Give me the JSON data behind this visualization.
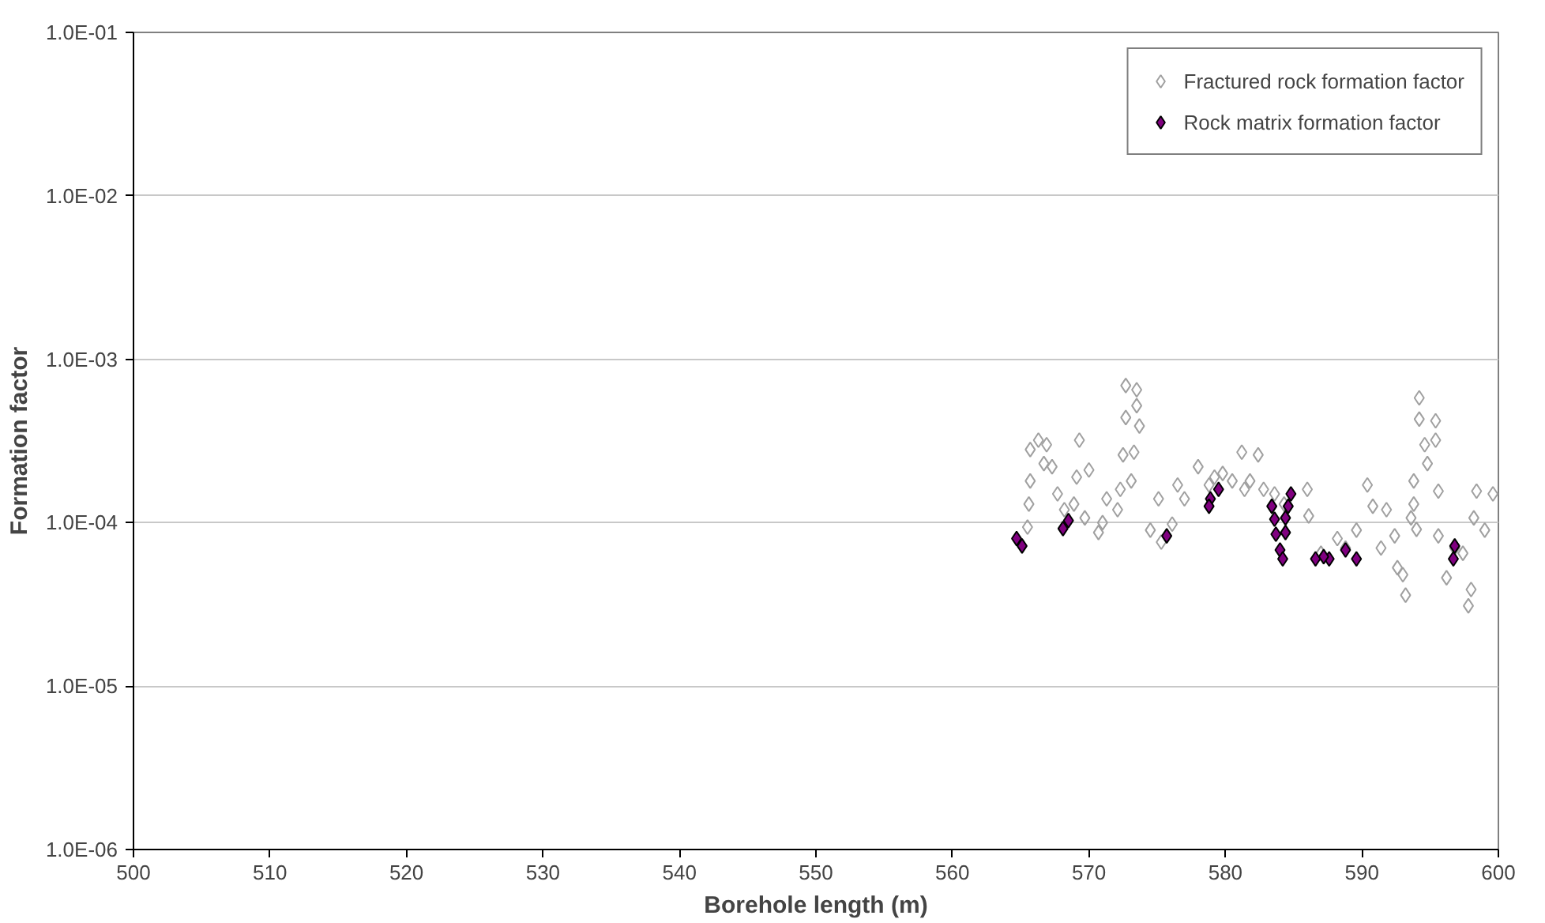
{
  "chart_data": {
    "type": "scatter",
    "xlabel": "Borehole length (m)",
    "ylabel": "Formation factor",
    "xlim": [
      500,
      600
    ],
    "xticks": [
      500,
      510,
      520,
      530,
      540,
      550,
      560,
      570,
      580,
      590,
      600
    ],
    "ylim": [
      1e-06,
      0.1
    ],
    "yticks": [
      {
        "value": 1e-06,
        "label": "1.0E-06"
      },
      {
        "value": 1e-05,
        "label": "1.0E-05"
      },
      {
        "value": 0.0001,
        "label": "1.0E-04"
      },
      {
        "value": 0.001,
        "label": "1.0E-03"
      },
      {
        "value": 0.01,
        "label": "1.0E-02"
      },
      {
        "value": 0.1,
        "label": "1.0E-01"
      }
    ],
    "log": "y",
    "grid": "y",
    "legend": "top right",
    "marker": "diamond",
    "series": [
      {
        "name": "Fractured rock formation factor",
        "color": "#a0a0a0",
        "x": [
          565.5,
          565.6,
          565.7,
          565.7,
          566.3,
          566.9,
          566.7,
          567.3,
          567.7,
          569.1,
          569.3,
          570.0,
          568.9,
          569.7,
          570.7,
          571.3,
          572.1,
          572.7,
          573.5,
          573.5,
          572.7,
          573.7,
          572.5,
          573.3,
          573.1,
          572.3,
          575.1,
          575.3,
          576.1,
          577.0,
          578.0,
          579.8,
          581.2,
          581.4,
          582.4,
          581.8,
          582.8,
          586.0,
          586.1,
          588.2,
          590.4,
          590.8,
          591.8,
          591.4,
          592.4,
          592.6,
          593.2,
          593.0,
          594.2,
          594.2,
          595.4,
          594.6,
          595.4,
          594.8,
          593.8,
          595.6,
          593.8,
          593.6,
          594.0,
          595.6,
          596.2,
          597.8,
          598.0,
          598.4,
          598.2,
          597.4,
          599.0,
          599.6,
          578.8,
          579.2,
          580.5,
          583.6,
          584.3,
          587.0,
          588.8,
          589.6,
          596.8,
          574.5,
          576.5,
          568.2,
          571.0
        ],
        "values": [
          9.4e-05,
          0.00013,
          0.00018,
          0.00028,
          0.00032,
          0.0003,
          0.00023,
          0.00022,
          0.00015,
          0.00019,
          0.00032,
          0.00021,
          0.00013,
          0.000107,
          8.7e-05,
          0.00014,
          0.00012,
          0.00069,
          0.00065,
          0.00052,
          0.00044,
          0.00039,
          0.00026,
          0.00027,
          0.00018,
          0.00016,
          0.00014,
          7.6e-05,
          9.8e-05,
          0.00014,
          0.00022,
          0.0002,
          0.00027,
          0.00016,
          0.00026,
          0.00018,
          0.00016,
          0.00016,
          0.00011,
          8e-05,
          0.00017,
          0.000126,
          0.00012,
          7e-05,
          8.3e-05,
          5.3e-05,
          3.6e-05,
          4.8e-05,
          0.00058,
          0.00043,
          0.00042,
          0.0003,
          0.00032,
          0.00023,
          0.00018,
          0.000156,
          0.00013,
          0.000107,
          9.1e-05,
          8.3e-05,
          4.6e-05,
          3.1e-05,
          3.9e-05,
          0.000156,
          0.000107,
          6.5e-05,
          9e-05,
          0.00015,
          0.00017,
          0.00019,
          0.00018,
          0.00015,
          0.00013,
          6.5e-05,
          7e-05,
          9e-05,
          7e-05,
          9e-05,
          0.00017,
          0.00012,
          0.0001
        ]
      },
      {
        "name": "Rock matrix formation factor",
        "color": "#800080",
        "x": [
          564.7,
          565.1,
          568.5,
          568.1,
          575.7,
          578.9,
          579.5,
          578.8,
          583.4,
          583.6,
          583.7,
          584.0,
          584.2,
          584.4,
          584.4,
          584.6,
          584.8,
          586.6,
          587.6,
          587.2,
          588.8,
          589.6,
          596.8,
          596.7
        ],
        "values": [
          8e-05,
          7.2e-05,
          0.000103,
          9.2e-05,
          8.3e-05,
          0.00014,
          0.00016,
          0.000126,
          0.000126,
          0.000105,
          8.5e-05,
          6.8e-05,
          6e-05,
          0.000107,
          8.7e-05,
          0.000126,
          0.00015,
          6e-05,
          6e-05,
          6.2e-05,
          6.8e-05,
          6e-05,
          7.2e-05,
          6e-05
        ]
      }
    ]
  }
}
